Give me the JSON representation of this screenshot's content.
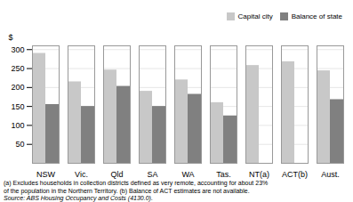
{
  "chart_data": {
    "type": "bar",
    "categories": [
      "NSW",
      "Vic.",
      "Qld",
      "SA",
      "WA",
      "Tas.",
      "NT(a)",
      "ACT(b)",
      "Aust."
    ],
    "series": [
      {
        "name": "Capital city",
        "color": "#c8c8c8",
        "values": [
          290,
          215,
          246,
          190,
          220,
          160,
          258,
          268,
          244
        ]
      },
      {
        "name": "Balance of state",
        "color": "#808080",
        "values": [
          155,
          150,
          203,
          150,
          182,
          125,
          null,
          null,
          168
        ]
      }
    ],
    "ylabel": "$",
    "ylim": [
      0,
      310
    ],
    "yticks": [
      50,
      100,
      150,
      200,
      250,
      300
    ],
    "grid": true,
    "legend": "upper right",
    "annotations": [
      "(a) Excludes households in collection districts defined as very remote, accounting for about 23%",
      "of the population in the Northern Territory. (b) Balance of ACT estimates are not available.",
      "Source: ABS Housing Occupancy and Costs (4130.0)."
    ]
  }
}
